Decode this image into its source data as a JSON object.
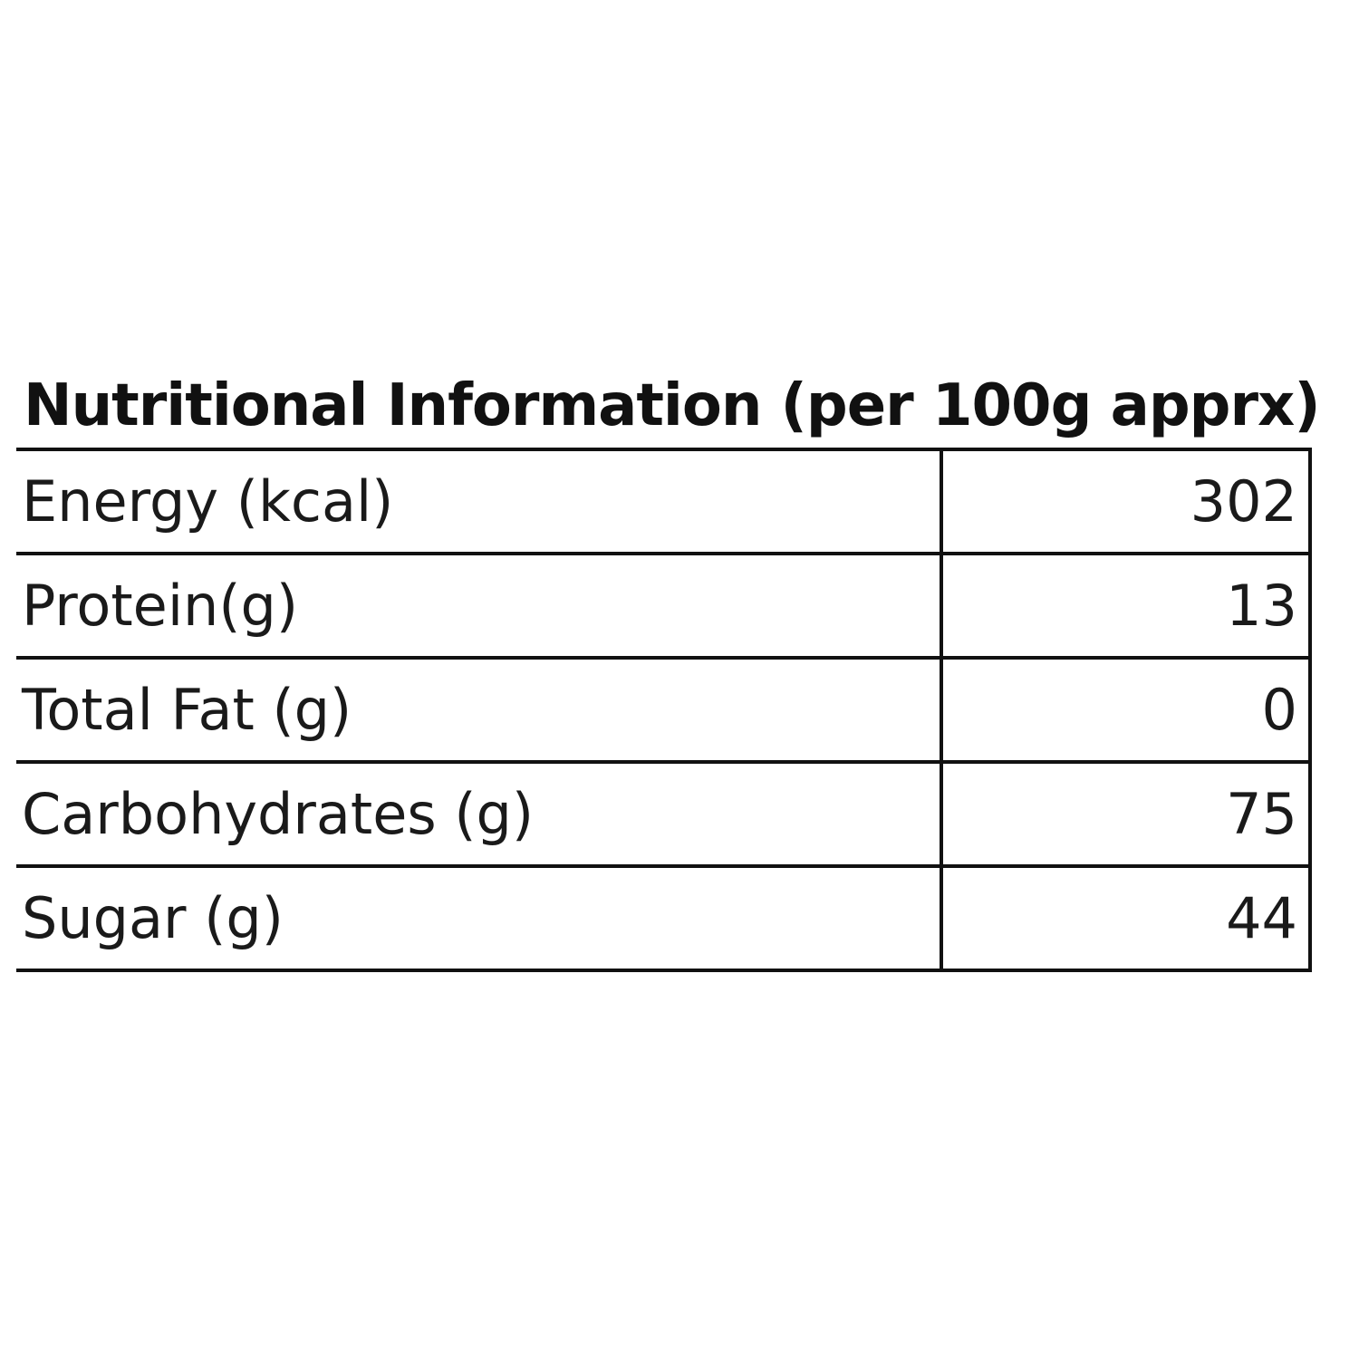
{
  "table": {
    "title": "Nutritional Information (per 100g apprx)",
    "rows": [
      [
        "Energy (kcal)",
        "302"
      ],
      [
        "Protein(g)",
        "13"
      ],
      [
        "Total Fat (g)",
        "0"
      ],
      [
        "Carbohydrates (g)",
        "75"
      ],
      [
        "Sugar (g)",
        "44"
      ]
    ]
  }
}
